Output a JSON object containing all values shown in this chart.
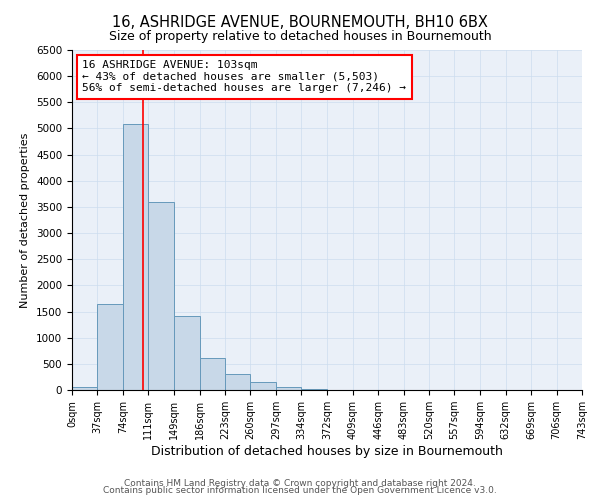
{
  "title": "16, ASHRIDGE AVENUE, BOURNEMOUTH, BH10 6BX",
  "subtitle": "Size of property relative to detached houses in Bournemouth",
  "xlabel": "Distribution of detached houses by size in Bournemouth",
  "ylabel": "Number of detached properties",
  "bar_edges": [
    0,
    37,
    74,
    111,
    149,
    186,
    223,
    260,
    297,
    334,
    372,
    409,
    446,
    483,
    520,
    557,
    594,
    632,
    669,
    706,
    743
  ],
  "bar_heights": [
    60,
    1650,
    5080,
    3600,
    1420,
    610,
    300,
    150,
    60,
    10,
    5,
    2,
    0,
    0,
    0,
    0,
    0,
    0,
    0,
    0
  ],
  "bar_color": "#c8d8e8",
  "bar_edgecolor": "#6699bb",
  "vline_x": 103,
  "vline_color": "red",
  "vline_linewidth": 1.2,
  "annotation_line1": "16 ASHRIDGE AVENUE: 103sqm",
  "annotation_line2": "← 43% of detached houses are smaller (5,503)",
  "annotation_line3": "56% of semi-detached houses are larger (7,246) →",
  "ylim": [
    0,
    6500
  ],
  "yticks": [
    0,
    500,
    1000,
    1500,
    2000,
    2500,
    3000,
    3500,
    4000,
    4500,
    5000,
    5500,
    6000,
    6500
  ],
  "xtick_labels": [
    "0sqm",
    "37sqm",
    "74sqm",
    "111sqm",
    "149sqm",
    "186sqm",
    "223sqm",
    "260sqm",
    "297sqm",
    "334sqm",
    "372sqm",
    "409sqm",
    "446sqm",
    "483sqm",
    "520sqm",
    "557sqm",
    "594sqm",
    "632sqm",
    "669sqm",
    "706sqm",
    "743sqm"
  ],
  "footer_line1": "Contains HM Land Registry data © Crown copyright and database right 2024.",
  "footer_line2": "Contains public sector information licensed under the Open Government Licence v3.0.",
  "background_color": "#ffffff",
  "grid_color": "#ccddee",
  "title_fontsize": 10.5,
  "subtitle_fontsize": 9,
  "annotation_fontsize": 8,
  "xlabel_fontsize": 9,
  "ylabel_fontsize": 8,
  "footer_fontsize": 6.5,
  "tick_fontsize": 7,
  "ytick_fontsize": 7.5
}
